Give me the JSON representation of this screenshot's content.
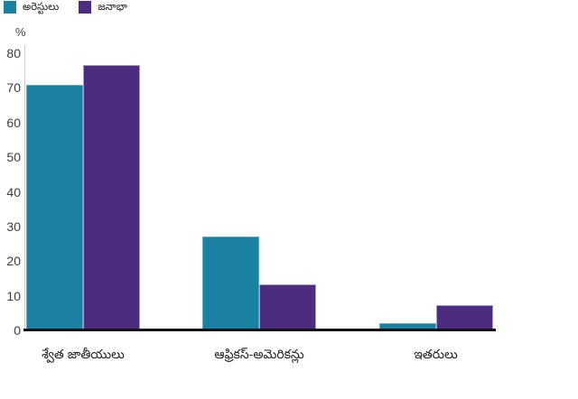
{
  "chart_data": {
    "type": "bar",
    "title": "",
    "xlabel": "",
    "ylabel": "%",
    "ylim": [
      0,
      80
    ],
    "yticks": [
      0,
      10,
      20,
      30,
      40,
      50,
      60,
      70,
      80
    ],
    "grid": false,
    "legend_position": "top-left",
    "categories": [
      "శ్వేత జాతీయులు",
      "ఆఫ్రికస్-అమెరికన్లు",
      "ఇతరులు"
    ],
    "series": [
      {
        "name": "అరెస్టులు",
        "color": "#1a81a2",
        "border_color": "#5fadc5",
        "values": [
          71,
          27,
          2.2
        ]
      },
      {
        "name": "జనాభా",
        "color": "#4b2c7f",
        "border_color": "#a89bd5",
        "values": [
          76.5,
          13.3,
          7.3
        ]
      }
    ]
  },
  "colors": {
    "background": "#ffffff",
    "x_axis_line": "#131313",
    "y_axis_line": "#cccccc",
    "tick_text": "#3d3d3d",
    "category_text": "#1f1f1f"
  }
}
